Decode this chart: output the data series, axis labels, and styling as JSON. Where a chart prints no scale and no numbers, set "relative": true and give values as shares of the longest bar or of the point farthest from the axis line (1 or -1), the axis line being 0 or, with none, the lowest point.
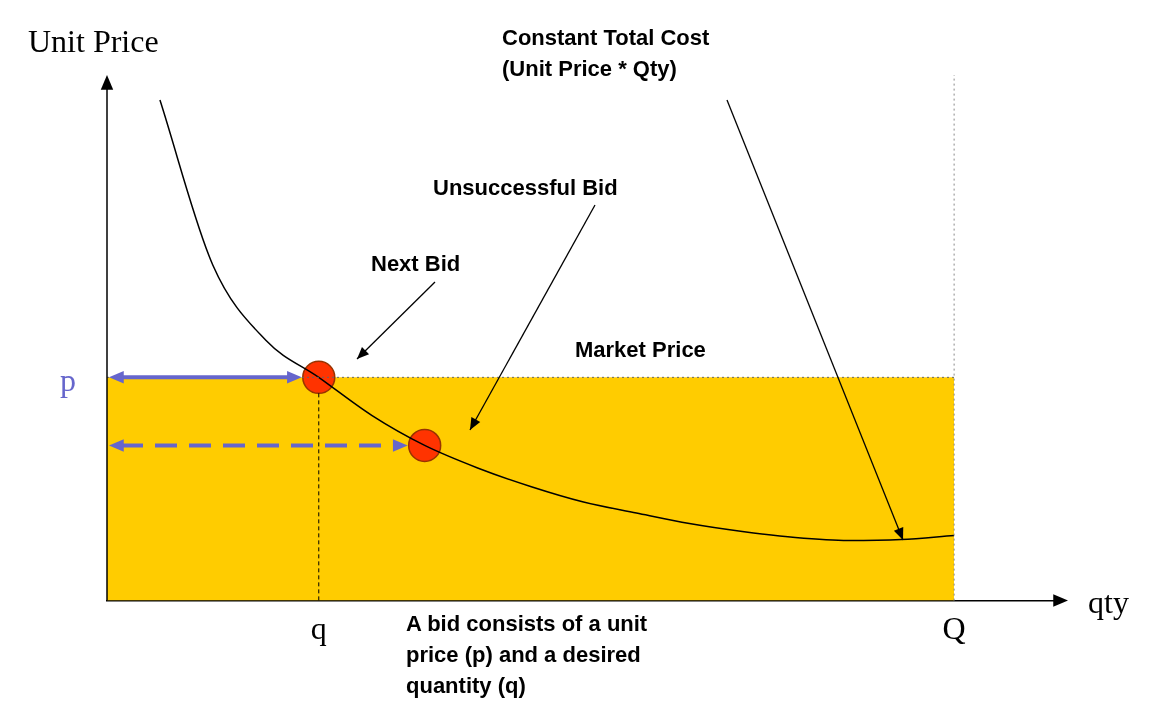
{
  "chart_data": {
    "type": "line",
    "relative": true,
    "ylabel": "Unit Price",
    "xlabel": "qty",
    "grid": false,
    "legend": false,
    "categories": [
      null,
      null,
      null,
      null,
      "q",
      null,
      null,
      null,
      null,
      null,
      null,
      null,
      null,
      null,
      null,
      null,
      "Q"
    ],
    "series": [
      {
        "type": "area",
        "color": "#ffcc00",
        "values": [
          0.446,
          0.446,
          0.446,
          0.446,
          0.446,
          0.446,
          0.446,
          0.446,
          0.446,
          0.446,
          0.446,
          0.446,
          0.446,
          0.446,
          0.446,
          0.446,
          0.446
        ],
        "line_style": "dotted",
        "marker": "none"
      },
      {
        "color": "#000000",
        "values": [
          null,
          1.0,
          0.67,
          0.52,
          0.446,
          0.37,
          0.31,
          0.265,
          0.228,
          0.197,
          0.175,
          0.154,
          0.138,
          0.126,
          0.12,
          0.122,
          0.13
        ],
        "line_style": "solid",
        "marker": "none"
      },
      {
        "type": "scatter",
        "color": "#ff3300",
        "values": [
          null,
          null,
          null,
          null,
          0.446,
          null,
          0.31,
          null,
          null,
          null,
          null,
          null,
          null,
          null,
          null,
          null,
          null
        ],
        "marker": "circle"
      }
    ],
    "ref_lines": [
      {
        "axis": "x",
        "value": "Q",
        "color": "#888888",
        "line_style": "dotted"
      }
    ],
    "annotations": [
      "Constant Total Cost\n(Unit Price * Qty)",
      "Unsuccessful Bid",
      "Next Bid",
      "p",
      "Market Price",
      "A bid consists of a unit price (p) and a desired quantity (q)"
    ]
  }
}
